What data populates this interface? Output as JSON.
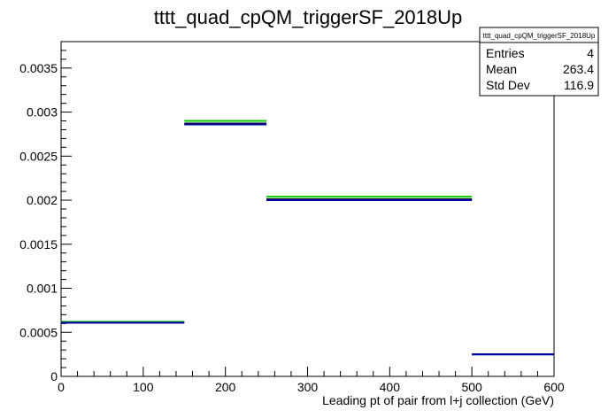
{
  "chart_data": {
    "type": "histogram",
    "title": "tttt_quad_cpQM_triggerSF_2018Up",
    "xlabel": "Leading pt of pair from l+j collection (GeV)",
    "ylabel": "",
    "xlim": [
      0,
      600
    ],
    "ylim": [
      0,
      0.0038
    ],
    "x_ticks": [
      "0",
      "100",
      "200",
      "300",
      "400",
      "500",
      "600"
    ],
    "y_ticks": [
      "0",
      "0.0005",
      "0.001",
      "0.0015",
      "0.002",
      "0.0025",
      "0.003",
      "0.0035"
    ],
    "x_tick_values": [
      0,
      100,
      200,
      300,
      400,
      500,
      600
    ],
    "y_tick_values": [
      0,
      0.0005,
      0.001,
      0.0015,
      0.002,
      0.0025,
      0.003,
      0.0035
    ],
    "bin_edges": [
      0,
      150,
      250,
      500,
      600
    ],
    "series": [
      {
        "color": "#00cc00",
        "values": [
          0.00062,
          0.0029,
          0.00204,
          0.00025
        ]
      },
      {
        "color": "#000000",
        "values": [
          0.00061,
          0.00287,
          0.00201,
          0.00025
        ]
      },
      {
        "color": "#0000aa",
        "values": [
          0.00061,
          0.00286,
          0.002,
          0.00025
        ]
      }
    ],
    "grid": false,
    "legend": "none"
  },
  "stats_box": {
    "name": "tttt_quad_cpQM_triggerSF_2018Up",
    "rows": [
      {
        "label": "Entries",
        "value": "4"
      },
      {
        "label": "Mean",
        "value": "263.4"
      },
      {
        "label": "Std Dev",
        "value": "116.9"
      }
    ]
  }
}
